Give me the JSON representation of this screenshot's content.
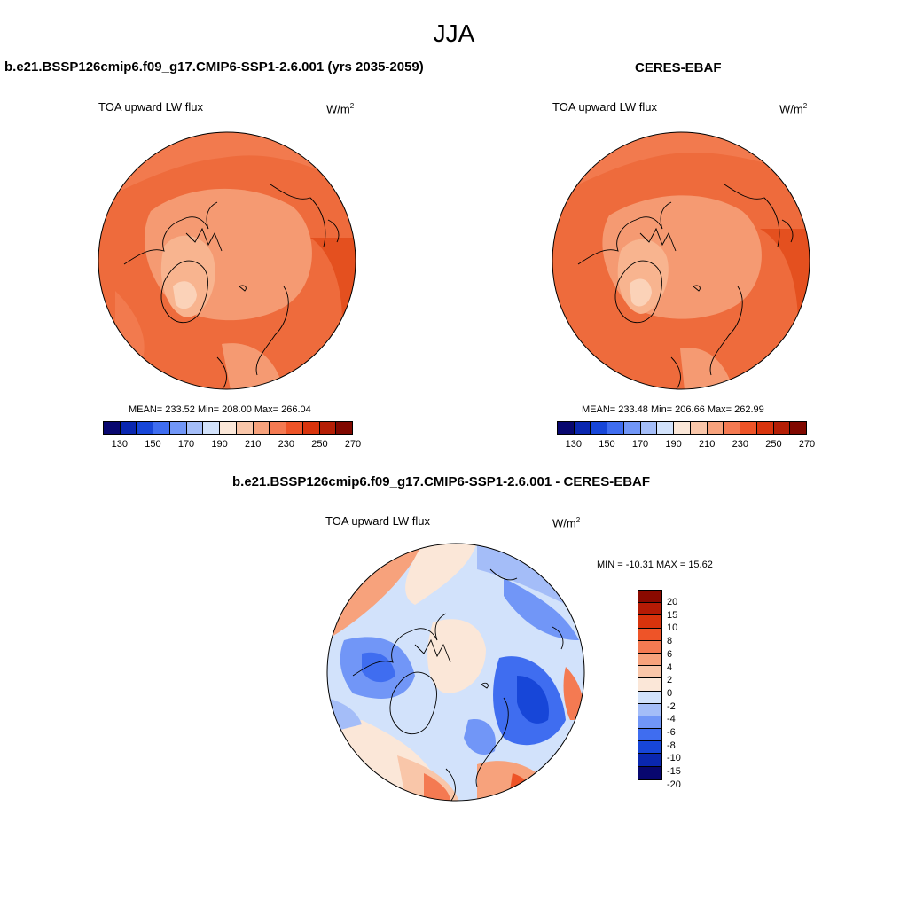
{
  "season": "JJA",
  "panels": {
    "model": {
      "title": "b.e21.BSSP126cmip6.f09_g17.CMIP6-SSP1-2.6.001 (yrs 2035-2059)",
      "variable": "TOA upward LW flux",
      "units": "W/m",
      "units_exp": "2",
      "stats": "MEAN= 233.52  Min= 208.00  Max= 266.04"
    },
    "obs": {
      "title": "CERES-EBAF",
      "variable": "TOA upward LW flux",
      "units": "W/m",
      "units_exp": "2",
      "stats": "MEAN= 233.48  Min= 206.66  Max= 262.99"
    },
    "diff": {
      "title": "b.e21.BSSP126cmip6.f09_g17.CMIP6-SSP1-2.6.001 - CERES-EBAF",
      "variable": "TOA upward LW flux",
      "units": "W/m",
      "units_exp": "2",
      "stats": "MIN = -10.31 MAX =  15.62"
    }
  },
  "colorbar_abs": {
    "ticks": [
      "130",
      "150",
      "170",
      "190",
      "210",
      "230",
      "250",
      "270"
    ],
    "colors": [
      "#08076f",
      "#0a27b0",
      "#1746d8",
      "#3f6df0",
      "#7196f7",
      "#a4bdf8",
      "#d2e2fb",
      "#fbe7d8",
      "#f9c6a9",
      "#f7a27c",
      "#f47a52",
      "#ee5428",
      "#d8340d",
      "#b41e05",
      "#800800"
    ]
  },
  "colorbar_diff": {
    "ticks": [
      "20",
      "15",
      "10",
      "8",
      "6",
      "4",
      "2",
      "0",
      "-2",
      "-4",
      "-6",
      "-8",
      "-10",
      "-15",
      "-20"
    ],
    "colors": [
      "#8a0a00",
      "#b51b05",
      "#d8330c",
      "#ee5428",
      "#f47a52",
      "#f7a27c",
      "#f9c6a9",
      "#fbe7d8",
      "#d2e2fb",
      "#a4bdf8",
      "#7196f7",
      "#3f6df0",
      "#1746d8",
      "#0a27b0",
      "#08076f"
    ]
  }
}
